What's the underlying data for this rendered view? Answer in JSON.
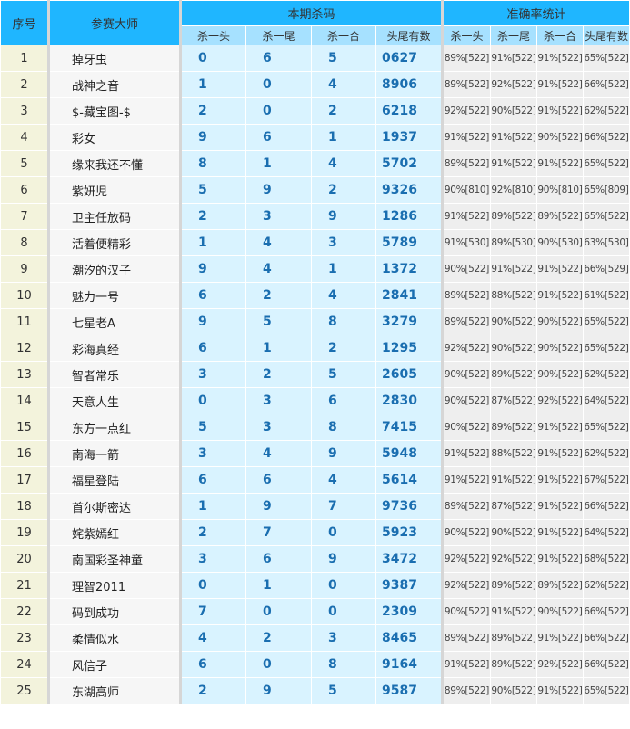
{
  "header": {
    "col_id": "序号",
    "col_name": "参赛大师",
    "group_kill": "本期杀码",
    "group_stats": "准确率统计",
    "sub": [
      "杀一头",
      "杀一尾",
      "杀一合",
      "头尾有数"
    ]
  },
  "colors": {
    "header": "#1fb6ff",
    "subheader": "#a6e1ff",
    "kill_text": "#1a6eb0"
  },
  "rows": [
    {
      "id": "1",
      "name": "掉牙虫",
      "kill": [
        "0",
        "6",
        "5",
        "0627"
      ],
      "stats": [
        "89%[522]",
        "91%[522]",
        "91%[522]",
        "65%[522]"
      ]
    },
    {
      "id": "2",
      "name": "战神之音",
      "kill": [
        "1",
        "0",
        "4",
        "8906"
      ],
      "stats": [
        "89%[522]",
        "92%[522]",
        "91%[522]",
        "66%[522]"
      ]
    },
    {
      "id": "3",
      "name": "$-藏宝图-$",
      "kill": [
        "2",
        "0",
        "2",
        "6218"
      ],
      "stats": [
        "92%[522]",
        "90%[522]",
        "91%[522]",
        "62%[522]"
      ]
    },
    {
      "id": "4",
      "name": "彩女",
      "kill": [
        "9",
        "6",
        "1",
        "1937"
      ],
      "stats": [
        "91%[522]",
        "91%[522]",
        "90%[522]",
        "66%[522]"
      ]
    },
    {
      "id": "5",
      "name": "缘来我还不懂",
      "kill": [
        "8",
        "1",
        "4",
        "5702"
      ],
      "stats": [
        "89%[522]",
        "91%[522]",
        "91%[522]",
        "65%[522]"
      ]
    },
    {
      "id": "6",
      "name": "紫妍児",
      "kill": [
        "5",
        "9",
        "2",
        "9326"
      ],
      "stats": [
        "90%[810]",
        "92%[810]",
        "90%[810]",
        "65%[809]"
      ]
    },
    {
      "id": "7",
      "name": "卫主任放码",
      "kill": [
        "2",
        "3",
        "9",
        "1286"
      ],
      "stats": [
        "91%[522]",
        "89%[522]",
        "89%[522]",
        "65%[522]"
      ]
    },
    {
      "id": "8",
      "name": "活着便精彩",
      "kill": [
        "1",
        "4",
        "3",
        "5789"
      ],
      "stats": [
        "91%[530]",
        "89%[530]",
        "90%[530]",
        "63%[530]"
      ]
    },
    {
      "id": "9",
      "name": "潮汐的汉子",
      "kill": [
        "9",
        "4",
        "1",
        "1372"
      ],
      "stats": [
        "90%[522]",
        "91%[522]",
        "91%[522]",
        "66%[529]"
      ]
    },
    {
      "id": "10",
      "name": "魅力一号",
      "kill": [
        "6",
        "2",
        "4",
        "2841"
      ],
      "stats": [
        "89%[522]",
        "88%[522]",
        "91%[522]",
        "61%[522]"
      ]
    },
    {
      "id": "11",
      "name": "七星老A",
      "kill": [
        "9",
        "5",
        "8",
        "3279"
      ],
      "stats": [
        "89%[522]",
        "90%[522]",
        "90%[522]",
        "65%[522]"
      ]
    },
    {
      "id": "12",
      "name": "彩海真经",
      "kill": [
        "6",
        "1",
        "2",
        "1295"
      ],
      "stats": [
        "92%[522]",
        "90%[522]",
        "90%[522]",
        "65%[522]"
      ]
    },
    {
      "id": "13",
      "name": "智者常乐",
      "kill": [
        "3",
        "2",
        "5",
        "2605"
      ],
      "stats": [
        "90%[522]",
        "89%[522]",
        "90%[522]",
        "62%[522]"
      ]
    },
    {
      "id": "14",
      "name": "天意人生",
      "kill": [
        "0",
        "3",
        "6",
        "2830"
      ],
      "stats": [
        "90%[522]",
        "87%[522]",
        "92%[522]",
        "64%[522]"
      ]
    },
    {
      "id": "15",
      "name": "东方一点红",
      "kill": [
        "5",
        "3",
        "8",
        "7415"
      ],
      "stats": [
        "90%[522]",
        "89%[522]",
        "91%[522]",
        "65%[522]"
      ]
    },
    {
      "id": "16",
      "name": "南海一箭",
      "kill": [
        "3",
        "4",
        "9",
        "5948"
      ],
      "stats": [
        "91%[522]",
        "88%[522]",
        "91%[522]",
        "62%[522]"
      ]
    },
    {
      "id": "17",
      "name": "福星登陆",
      "kill": [
        "6",
        "6",
        "4",
        "5614"
      ],
      "stats": [
        "91%[522]",
        "91%[522]",
        "91%[522]",
        "67%[522]"
      ]
    },
    {
      "id": "18",
      "name": "首尔斯密达",
      "kill": [
        "1",
        "9",
        "7",
        "9736"
      ],
      "stats": [
        "89%[522]",
        "87%[522]",
        "91%[522]",
        "66%[522]"
      ]
    },
    {
      "id": "19",
      "name": "姹紫嫣红",
      "kill": [
        "2",
        "7",
        "0",
        "5923"
      ],
      "stats": [
        "90%[522]",
        "90%[522]",
        "91%[522]",
        "64%[522]"
      ]
    },
    {
      "id": "20",
      "name": "南国彩圣神童",
      "kill": [
        "3",
        "6",
        "9",
        "3472"
      ],
      "stats": [
        "92%[522]",
        "92%[522]",
        "91%[522]",
        "68%[522]"
      ]
    },
    {
      "id": "21",
      "name": "理智2011",
      "kill": [
        "0",
        "1",
        "0",
        "9387"
      ],
      "stats": [
        "92%[522]",
        "89%[522]",
        "89%[522]",
        "62%[522]"
      ]
    },
    {
      "id": "22",
      "name": "码到成功",
      "kill": [
        "7",
        "0",
        "0",
        "2309"
      ],
      "stats": [
        "90%[522]",
        "91%[522]",
        "90%[522]",
        "66%[522]"
      ]
    },
    {
      "id": "23",
      "name": "柔情似水",
      "kill": [
        "4",
        "2",
        "3",
        "8465"
      ],
      "stats": [
        "89%[522]",
        "89%[522]",
        "91%[522]",
        "66%[522]"
      ]
    },
    {
      "id": "24",
      "name": "风信子",
      "kill": [
        "6",
        "0",
        "8",
        "9164"
      ],
      "stats": [
        "91%[522]",
        "89%[522]",
        "92%[522]",
        "66%[522]"
      ]
    },
    {
      "id": "25",
      "name": "东湖高师",
      "kill": [
        "2",
        "9",
        "5",
        "9587"
      ],
      "stats": [
        "89%[522]",
        "90%[522]",
        "91%[522]",
        "65%[522]"
      ]
    }
  ]
}
